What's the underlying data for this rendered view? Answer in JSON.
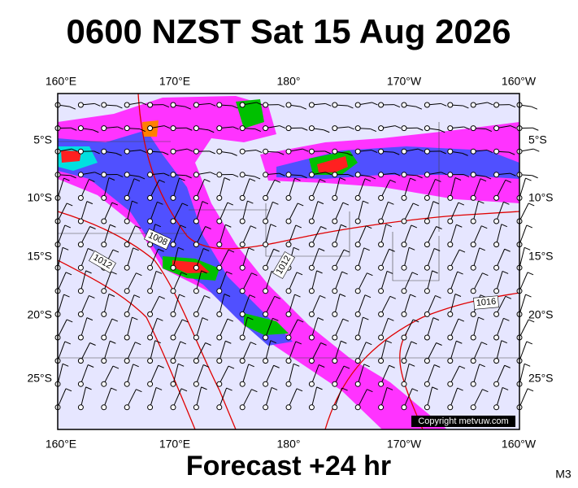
{
  "header": {
    "title": "0600 NZST Sat 15 Aug 2026"
  },
  "map": {
    "lon_labels": [
      "160°E",
      "170°E",
      "180°",
      "170°W",
      "160°W"
    ],
    "lat_labels": [
      "5°S",
      "10°S",
      "15°S",
      "20°S",
      "25°S"
    ],
    "isobar_labels": [
      "1008",
      "1012",
      "1012",
      "1016"
    ],
    "copyright": "Copyright metvuw.com"
  },
  "footer": {
    "forecast": "Forecast +24 hr",
    "model": "M3"
  }
}
